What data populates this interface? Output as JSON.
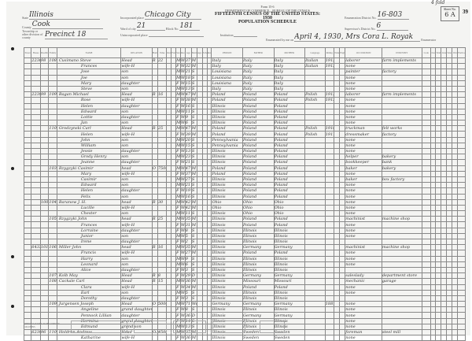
{
  "header": {
    "form_no": "Form 15-6",
    "department": "DEPARTMENT OF COMMERCE—BUREAU OF THE CENSUS",
    "census_title": "FIFTEENTH CENSUS OF THE UNITED STATES: 1930",
    "schedule": "POPULATION SCHEDULE",
    "state_label": "State",
    "state": "Illinois",
    "county_label": "County",
    "county": "Cook",
    "township_label": "Township or other division of county",
    "township": "Precinct 18",
    "place_label": "Incorporated place",
    "place": "Chicago City",
    "ward_label": "Ward of city",
    "ward": "21",
    "block_label": "Block No.",
    "block": "181",
    "unincorporated_label": "Unincorporated place",
    "institution_label": "Institution",
    "ed_label": "Enumeration District No.",
    "ed": "16-803",
    "sd_label": "Supervisor's District No.",
    "sd": "6",
    "enumerated_label": "Enumerated by me on",
    "enumerated": "April 4, 1930, Mrs Cora L. Royak",
    "enumerator_suffix": "Enumerator",
    "sheet_label": "Sheet No.",
    "sheet": "6 A",
    "page_number": "39",
    "corner_note": "4 fold"
  },
  "columns": [
    "Street",
    "House",
    "Dwelling",
    "Family",
    "NAME",
    "RELATION",
    "Home",
    "Value",
    "Radio",
    "Farm",
    "Sex",
    "Race",
    "Age",
    "Marital",
    "Age at marriage",
    "School",
    "Read",
    "PERSON",
    "FATHER",
    "MOTHER",
    "Language",
    "Immig.",
    "Natur.",
    "English",
    "OCCUPATION",
    "INDUSTRY",
    "Code",
    "Class",
    "Work",
    "Line",
    "Veteran",
    "War",
    "Farm sch."
  ],
  "rows": [
    {
      "h": "2236",
      "d": "98",
      "f": "108",
      "name": "Cusimano Steve",
      "rel": "Head",
      "home": "R",
      "val": "22",
      "sex": "M",
      "race": "W",
      "age": "37",
      "mar": "M",
      "bp": "Italy",
      "fbp": "Italy",
      "mbp": "Italy",
      "lang": "Italian",
      "imm": "1913",
      "occ": "laborer",
      "ind": "farm implements"
    },
    {
      "name": "Frances",
      "rel": "wife-H",
      "sex": "F",
      "race": "W",
      "age": "32",
      "mar": "M",
      "bp": "Italy",
      "fbp": "Italy",
      "mbp": "Italy",
      "lang": "Italian",
      "imm": "1913",
      "occ": "none"
    },
    {
      "name": "Jose",
      "rel": "son",
      "sex": "M",
      "race": "W",
      "age": "21",
      "mar": "S",
      "bp": "Louisiana",
      "fbp": "Italy",
      "mbp": "Italy",
      "occ": "painter",
      "ind": "factory"
    },
    {
      "name": "Joe",
      "rel": "son",
      "sex": "M",
      "race": "W",
      "age": "18",
      "mar": "S",
      "bp": "Louisiana",
      "fbp": "Italy",
      "mbp": "Italy",
      "occ": "none"
    },
    {
      "name": "Mary",
      "rel": "daughter",
      "sex": "F",
      "race": "W",
      "age": "15",
      "mar": "S",
      "bp": "Louisiana",
      "fbp": "Italy",
      "mbp": "Italy",
      "occ": "none"
    },
    {
      "name": "Steve",
      "rel": "son",
      "sex": "M",
      "race": "W",
      "age": "13",
      "mar": "S",
      "bp": "Italy",
      "fbp": "Italy",
      "mbp": "Italy",
      "occ": "none"
    },
    {
      "h": "2238",
      "d": "99",
      "f": "109",
      "name": "Bagan Michael",
      "rel": "Head",
      "home": "R",
      "val": "16",
      "sex": "M",
      "race": "W",
      "age": "47",
      "mar": "M",
      "bp": "Poland",
      "fbp": "Poland",
      "mbp": "Poland",
      "lang": "Polish",
      "imm": "1913",
      "occ": "laborer",
      "ind": "farm implements"
    },
    {
      "name": "Rose",
      "rel": "wife-H",
      "sex": "F",
      "race": "W",
      "age": "38",
      "mar": "M",
      "bp": "Poland",
      "fbp": "Poland",
      "mbp": "Poland",
      "lang": "Polish",
      "imm": "1913",
      "occ": "none"
    },
    {
      "name": "Helen",
      "rel": "daughter",
      "sex": "F",
      "race": "W",
      "age": "16",
      "mar": "S",
      "bp": "Illinois",
      "fbp": "Poland",
      "mbp": "Poland",
      "occ": "none"
    },
    {
      "name": "Edward",
      "rel": "son",
      "sex": "M",
      "race": "W",
      "age": "11",
      "mar": "S",
      "bp": "Illinois",
      "fbp": "Poland",
      "mbp": "Poland",
      "occ": "none"
    },
    {
      "name": "Lottie",
      "rel": "daughter",
      "sex": "F",
      "race": "W",
      "age": "9",
      "mar": "S",
      "bp": "Illinois",
      "fbp": "Poland",
      "mbp": "Poland",
      "occ": "none"
    },
    {
      "name": "Jan",
      "rel": "son",
      "sex": "M",
      "race": "W",
      "age": "6",
      "mar": "S",
      "bp": "Illinois",
      "fbp": "Poland",
      "mbp": "Poland",
      "occ": "none"
    },
    {
      "f": "110",
      "name": "Grodzynski Carl",
      "rel": "Head",
      "home": "R",
      "val": "25",
      "sex": "M",
      "race": "W",
      "age": "47",
      "mar": "M",
      "bp": "Poland",
      "fbp": "Poland",
      "mbp": "Poland",
      "lang": "Polish",
      "imm": "1910",
      "occ": "truckman",
      "ind": "felt works"
    },
    {
      "name": "Helen",
      "rel": "wife-H",
      "sex": "F",
      "race": "W",
      "age": "39",
      "mar": "M",
      "bp": "Poland",
      "fbp": "Poland",
      "mbp": "Poland",
      "lang": "Polish",
      "imm": "1911",
      "occ": "dressmaker",
      "ind": "factory"
    },
    {
      "name": "John",
      "rel": "son",
      "sex": "M",
      "race": "W",
      "age": "20",
      "mar": "S",
      "bp": "Pennsylvania",
      "fbp": "Poland",
      "mbp": "Poland",
      "occ": "none"
    },
    {
      "name": "William",
      "rel": "son",
      "sex": "M",
      "race": "W",
      "age": "15",
      "mar": "S",
      "bp": "Pennsylvania",
      "fbp": "Poland",
      "mbp": "Poland",
      "occ": "none"
    },
    {
      "name": "Jessie",
      "rel": "daughter",
      "sex": "F",
      "race": "W",
      "age": "13",
      "mar": "S",
      "bp": "Illinois",
      "fbp": "Poland",
      "mbp": "Poland",
      "occ": "none"
    },
    {
      "name": "Grody Henry",
      "rel": "son",
      "sex": "M",
      "race": "W",
      "age": "23",
      "mar": "S",
      "bp": "Illinois",
      "fbp": "Poland",
      "mbp": "Poland",
      "occ": "helper",
      "ind": "bakery"
    },
    {
      "name": "Jeanne",
      "rel": "daughter",
      "sex": "F",
      "race": "W",
      "age": "21",
      "mar": "S",
      "bp": "Illinois",
      "fbp": "Poland",
      "mbp": "Poland",
      "occ": "bookkeeper",
      "ind": "bank"
    },
    {
      "f": "103",
      "name": "Rzygzyki Casimir",
      "rel": "head",
      "home": "O",
      "val": "7500",
      "sex": "M",
      "race": "W",
      "age": "47",
      "mar": "M",
      "bp": "Poland",
      "fbp": "Poland",
      "mbp": "Poland",
      "occ": "baker",
      "ind": "bakery"
    },
    {
      "name": "Mary",
      "rel": "wife-H",
      "sex": "F",
      "race": "W",
      "age": "37",
      "mar": "M",
      "bp": "Poland",
      "fbp": "Poland",
      "mbp": "Poland",
      "occ": "none"
    },
    {
      "name": "Casimir",
      "rel": "son",
      "sex": "M",
      "race": "W",
      "age": "27",
      "mar": "S",
      "bp": "Illinois",
      "fbp": "Poland",
      "mbp": "Poland",
      "occ": "baker",
      "ind": "box factory"
    },
    {
      "name": "Edward",
      "rel": "son",
      "sex": "M",
      "race": "W",
      "age": "21",
      "mar": "S",
      "bp": "Illinois",
      "fbp": "Poland",
      "mbp": "Poland",
      "occ": "none"
    },
    {
      "name": "Helen",
      "rel": "daughter",
      "sex": "F",
      "race": "W",
      "age": "19",
      "mar": "S",
      "bp": "Illinois",
      "fbp": "Poland",
      "mbp": "Poland",
      "occ": "none"
    },
    {
      "name": "Felix",
      "rel": "son",
      "sex": "M",
      "race": "W",
      "age": "16",
      "mar": "S",
      "bp": "Illinois",
      "fbp": "Poland",
      "mbp": "Poland",
      "occ": "none"
    },
    {
      "d": "100",
      "f": "104",
      "name": "Baranow J. H.",
      "rel": "head",
      "home": "R",
      "val": "30",
      "sex": "M",
      "race": "W",
      "age": "42",
      "mar": "M",
      "bp": "Ohio",
      "fbp": "Ohio",
      "mbp": "Ohio",
      "occ": "none"
    },
    {
      "name": "Lucille",
      "rel": "wife-H",
      "sex": "F",
      "race": "W",
      "age": "42",
      "mar": "M",
      "bp": "Ohio",
      "fbp": "Ohio",
      "mbp": "Ohio",
      "occ": "none"
    },
    {
      "name": "Chester",
      "rel": "son",
      "sex": "M",
      "race": "W",
      "age": "11",
      "mar": "S",
      "bp": "Illinois",
      "fbp": "Ohio",
      "mbp": "Ohio",
      "occ": "none"
    },
    {
      "f": "105",
      "name": "Rzygzyki John",
      "rel": "head",
      "home": "R",
      "val": "25",
      "sex": "M",
      "race": "W",
      "age": "35",
      "mar": "M",
      "bp": "Illinois",
      "fbp": "Poland",
      "mbp": "Poland",
      "occ": "machinist",
      "ind": "machine shop"
    },
    {
      "name": "Frances",
      "rel": "wife-H",
      "sex": "F",
      "race": "W",
      "age": "31",
      "mar": "M",
      "bp": "Illinois",
      "fbp": "Poland",
      "mbp": "Poland",
      "occ": "none"
    },
    {
      "name": "Lorraine",
      "rel": "daughter",
      "sex": "F",
      "race": "W",
      "age": "8",
      "mar": "S",
      "bp": "Illinois",
      "fbp": "Illinois",
      "mbp": "Illinois",
      "occ": "none"
    },
    {
      "name": "Junior",
      "rel": "son",
      "sex": "M",
      "race": "W",
      "age": "5",
      "mar": "S",
      "bp": "Illinois",
      "fbp": "Illinois",
      "mbp": "Illinois",
      "occ": "none"
    },
    {
      "name": "Irene",
      "rel": "daughter",
      "sex": "F",
      "race": "W",
      "age": "2",
      "mar": "S",
      "bp": "Illinois",
      "fbp": "Illinois",
      "mbp": "Illinois",
      "occ": ""
    },
    {
      "h": "6432",
      "d": "101",
      "f": "106",
      "name": "Miller John",
      "rel": "head",
      "home": "R",
      "val": "16",
      "sex": "M",
      "race": "W",
      "age": "35",
      "mar": "M",
      "bp": "Illinois",
      "fbp": "Germany",
      "mbp": "Germany",
      "occ": "machinist",
      "ind": "machine shop"
    },
    {
      "name": "Francis",
      "rel": "wife-H",
      "sex": "F",
      "race": "W",
      "age": "27",
      "mar": "M",
      "bp": "Illinois",
      "fbp": "Poland",
      "mbp": "Poland",
      "occ": "none"
    },
    {
      "name": "Harry",
      "rel": "son",
      "sex": "M",
      "race": "W",
      "age": "9",
      "mar": "S",
      "bp": "Illinois",
      "fbp": "Illinois",
      "mbp": "Illinois",
      "occ": "none"
    },
    {
      "name": "Leonard",
      "rel": "son",
      "sex": "M",
      "race": "W",
      "age": "6",
      "mar": "S",
      "bp": "Illinois",
      "fbp": "Illinois",
      "mbp": "Illinois",
      "occ": "none"
    },
    {
      "name": "Alice",
      "rel": "daughter",
      "sex": "F",
      "race": "W",
      "age": "3",
      "mar": "S",
      "bp": "Illinois",
      "fbp": "Illinois",
      "mbp": "Illinois",
      "occ": ""
    },
    {
      "f": "107",
      "name": "Kolb May",
      "rel": "Head",
      "home": "R",
      "val": "8",
      "sex": "F",
      "race": "W",
      "age": "29",
      "mar": "D",
      "bp": "Illinois",
      "fbp": "Germany",
      "mbp": "Germany",
      "occ": "saleslady",
      "ind": "department store"
    },
    {
      "f": "108",
      "name": "Cackale Carl",
      "rel": "Head",
      "home": "R",
      "val": "15",
      "sex": "M",
      "race": "W",
      "age": "36",
      "mar": "M",
      "bp": "Illinois",
      "fbp": "Missouri",
      "mbp": "Missouri",
      "occ": "mechanic",
      "ind": "garage"
    },
    {
      "name": "Clara",
      "rel": "wife-H",
      "sex": "F",
      "race": "W",
      "age": "34",
      "mar": "M",
      "bp": "Illinois",
      "fbp": "Poland",
      "mbp": "Poland",
      "occ": "none"
    },
    {
      "name": "Earl",
      "rel": "son",
      "sex": "M",
      "race": "W",
      "age": "5",
      "mar": "S",
      "bp": "Illinois",
      "fbp": "Illinois",
      "mbp": "Illinois",
      "occ": "none"
    },
    {
      "name": "Dorothy",
      "rel": "daughter",
      "sex": "F",
      "race": "W",
      "age": "3",
      "mar": "S",
      "bp": "Illinois",
      "fbp": "Illinois",
      "mbp": "Illinois",
      "occ": ""
    },
    {
      "f": "109",
      "name": "Jurgensen Joseph",
      "rel": "Head",
      "home": "O",
      "val": "5000",
      "sex": "M",
      "race": "W",
      "age": "71",
      "mar": "Wd",
      "bp": "Germany",
      "fbp": "Germany",
      "mbp": "Germany",
      "imm": "1881",
      "occ": "none"
    },
    {
      "name": "Angeline",
      "rel": "grand daughter",
      "sex": "F",
      "race": "W",
      "age": "8",
      "mar": "S",
      "bp": "Illinois",
      "fbp": "Illinois",
      "mbp": "Illinois",
      "occ": "none"
    },
    {
      "name": "Pennock Lillian",
      "rel": "daughter",
      "sex": "F",
      "race": "W",
      "age": "36",
      "mar": "D",
      "bp": "Illinois",
      "fbp": "Germany",
      "mbp": "Germany",
      "occ": "none"
    },
    {
      "name": "Hermina",
      "rel": "grand daughter",
      "sex": "F",
      "race": "W",
      "age": "14",
      "mar": "S",
      "bp": "Illinois",
      "fbp": "Illinois",
      "mbp": "Illinois",
      "occ": "none"
    },
    {
      "name": "Edmund",
      "rel": "grand son",
      "sex": "M",
      "race": "W",
      "age": "13",
      "mar": "S",
      "bp": "Illinois",
      "fbp": "Illinois",
      "mbp": "Illinois",
      "occ": "none"
    },
    {
      "h": "6238",
      "d": "96",
      "f": "110",
      "name": "Holdren Andrew",
      "rel": "Head",
      "home": "O",
      "val": "4500",
      "sex": "M",
      "race": "W",
      "age": "37",
      "mar": "M",
      "bp": "Illinois",
      "fbp": "Sweden",
      "mbp": "Sweden",
      "occ": "foreman",
      "ind": "steel mill"
    },
    {
      "name": "Katharine",
      "rel": "wife-H",
      "sex": "F",
      "race": "W",
      "age": "36",
      "mar": "M",
      "bp": "Illinois",
      "fbp": "Sweden",
      "mbp": "Sweden",
      "occ": "none"
    }
  ],
  "footer": {
    "abbrev_title": "ABBREVIATIONS TO BE USED IN COLUMNS"
  }
}
